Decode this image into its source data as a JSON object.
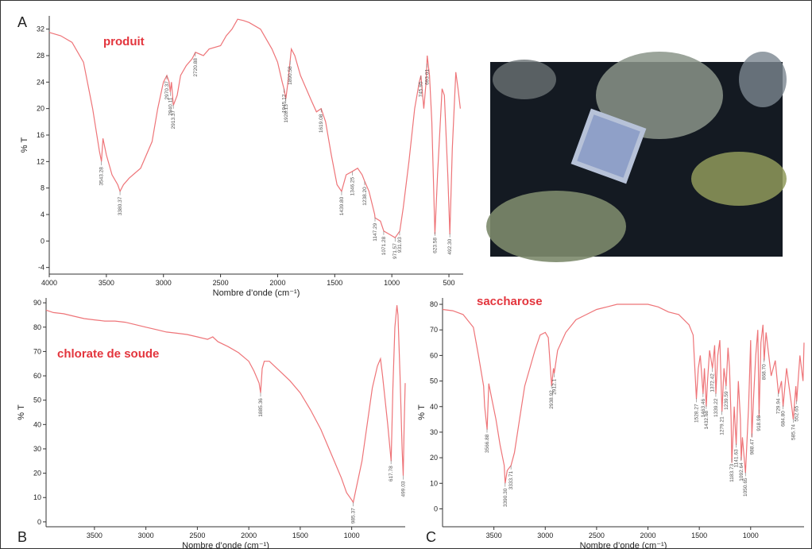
{
  "chart_data": [
    {
      "type": "line",
      "label": "A",
      "title": "produit",
      "x_label": "Nombre d’onde (cm⁻¹)",
      "y_label": "% T",
      "xlim": [
        4000,
        375
      ],
      "ylim": [
        -5,
        34
      ],
      "xticks": [
        4000,
        3500,
        3000,
        2500,
        2000,
        1500,
        1000,
        500
      ],
      "yticks": [
        -4,
        0,
        4,
        8,
        12,
        16,
        20,
        24,
        28,
        32
      ],
      "x": [
        4000,
        3900,
        3800,
        3700,
        3620,
        3560,
        3543,
        3530,
        3500,
        3450,
        3400,
        3380,
        3350,
        3300,
        3200,
        3100,
        3050,
        3000,
        2970,
        2950,
        2940,
        2930,
        2913,
        2880,
        2850,
        2800,
        2750,
        2720,
        2650,
        2600,
        2500,
        2450,
        2400,
        2350,
        2300,
        2250,
        2150,
        2050,
        2000,
        1960,
        1945,
        1928,
        1910,
        1880,
        1850,
        1800,
        1700,
        1660,
        1619,
        1580,
        1530,
        1480,
        1440,
        1400,
        1346,
        1300,
        1260,
        1238,
        1200,
        1150,
        1147,
        1100,
        1071,
        1020,
        971,
        930,
        900,
        850,
        800,
        760,
        745,
        720,
        700,
        690,
        670,
        650,
        623,
        600,
        560,
        540,
        510,
        492,
        470,
        440,
        420,
        400
      ],
      "series": [
        {
          "color": "#ee7478",
          "values": [
            31.5,
            31,
            30,
            27,
            20,
            13.5,
            12,
            15.5,
            13,
            10,
            8.5,
            7.5,
            8.5,
            9.5,
            11,
            15,
            20,
            24,
            25,
            24,
            22.5,
            24,
            20.5,
            22,
            25,
            26.5,
            27.5,
            28.5,
            28,
            29,
            29.5,
            31,
            32,
            33.5,
            33.3,
            33,
            32,
            29,
            27,
            24,
            23,
            21.5,
            24,
            29,
            28,
            25,
            21,
            19.5,
            20,
            18,
            13,
            8.5,
            7.5,
            10,
            10.5,
            11,
            10,
            9,
            7.5,
            4,
            3.5,
            3,
            1.5,
            1,
            0.5,
            1.5,
            5,
            12,
            20,
            24,
            25,
            20,
            24,
            28,
            25,
            18,
            1,
            10,
            23,
            22,
            10,
            1,
            14,
            25.5,
            23,
            20
          ]
        }
      ],
      "annotations": [
        {
          "value": 3543.28,
          "label": "3543.28"
        },
        {
          "value": 3380.37,
          "label": "3380.37"
        },
        {
          "value": 2970.37,
          "label": "2970.37"
        },
        {
          "value": 2940.11,
          "label": "2940.11"
        },
        {
          "value": 2913.37,
          "label": "2913.37"
        },
        {
          "value": 2720.88,
          "label": "2720.88"
        },
        {
          "value": 1945.12,
          "label": "1945.12"
        },
        {
          "value": 1928.13,
          "label": "1928.13"
        },
        {
          "value": 1890.58,
          "label": "1890.58"
        },
        {
          "value": 1619.08,
          "label": "1619.08"
        },
        {
          "value": 1439.8,
          "label": "1439.80"
        },
        {
          "value": 1346.25,
          "label": "1346.25"
        },
        {
          "value": 1238.2,
          "label": "1238.20"
        },
        {
          "value": 1147.29,
          "label": "1147.29"
        },
        {
          "value": 1071.28,
          "label": "1071.28"
        },
        {
          "value": 971.57,
          "label": "971.57"
        },
        {
          "value": 931.93,
          "label": "931.93"
        },
        {
          "value": 745.95,
          "label": "745.95"
        },
        {
          "value": 693.01,
          "label": "693.01"
        },
        {
          "value": 623.58,
          "label": "623.58"
        },
        {
          "value": 492.3,
          "label": "492.30"
        }
      ]
    },
    {
      "type": "line",
      "label": "B",
      "title": "chlorate de soude",
      "x_label": "Nombre d’onde (cm⁻¹)",
      "y_label": "% T",
      "xlim": [
        3970,
        480
      ],
      "ylim": [
        -2,
        92
      ],
      "xticks": [
        3500,
        3000,
        2500,
        2000,
        1500,
        1000
      ],
      "yticks": [
        0,
        10,
        20,
        30,
        40,
        50,
        60,
        70,
        80,
        90
      ],
      "x": [
        3970,
        3900,
        3800,
        3700,
        3600,
        3500,
        3400,
        3300,
        3200,
        3100,
        3000,
        2900,
        2800,
        2700,
        2600,
        2500,
        2400,
        2350,
        2300,
        2200,
        2100,
        2000,
        1950,
        1900,
        1885,
        1870,
        1850,
        1800,
        1700,
        1600,
        1500,
        1400,
        1300,
        1200,
        1100,
        1050,
        1000,
        985,
        960,
        900,
        850,
        800,
        750,
        720,
        700,
        650,
        617,
        600,
        580,
        560,
        550,
        530,
        510,
        499,
        490,
        480
      ],
      "series": [
        {
          "color": "#ee7478",
          "values": [
            87,
            86,
            85.5,
            84.5,
            83.5,
            83,
            82.5,
            82.5,
            82,
            81,
            80,
            79,
            78,
            77.5,
            77,
            76,
            75,
            76,
            74,
            72,
            69.5,
            66,
            62,
            57,
            53,
            63,
            66,
            66,
            62,
            58,
            53,
            46,
            38,
            28,
            18,
            12,
            9,
            8,
            13,
            25,
            40,
            55,
            64,
            67,
            60,
            40,
            25,
            55,
            80,
            89,
            85,
            60,
            30,
            19,
            40,
            57
          ]
        }
      ],
      "annotations": [
        {
          "value": 1885.36,
          "label": "1885.36"
        },
        {
          "value": 985.37,
          "label": "985.37"
        },
        {
          "value": 617.78,
          "label": "617.78"
        },
        {
          "value": 499.03,
          "label": "499.03"
        }
      ]
    },
    {
      "type": "line",
      "label": "C",
      "title": "saccharose",
      "x_label": "Nombre d’onde (cm⁻¹)",
      "y_label": "% T",
      "xlim": [
        4000,
        480
      ],
      "ylim": [
        -7,
        82.5
      ],
      "xticks": [
        3500,
        3000,
        2500,
        2000,
        1500,
        1000
      ],
      "yticks": [
        0,
        10,
        20,
        30,
        40,
        50,
        60,
        70,
        80
      ],
      "x": [
        4000,
        3900,
        3800,
        3700,
        3650,
        3600,
        3590,
        3566,
        3550,
        3520,
        3480,
        3440,
        3400,
        3390,
        3370,
        3333,
        3300,
        3250,
        3200,
        3100,
        3050,
        3000,
        2970,
        2938,
        2920,
        2912,
        2880,
        2800,
        2700,
        2600,
        2500,
        2400,
        2300,
        2000,
        1900,
        1800,
        1700,
        1600,
        1560,
        1528,
        1510,
        1490,
        1463,
        1450,
        1432,
        1420,
        1400,
        1372,
        1350,
        1339,
        1320,
        1300,
        1279,
        1260,
        1239,
        1220,
        1206,
        1190,
        1183,
        1160,
        1141,
        1120,
        1100,
        1092,
        1080,
        1050,
        1020,
        1000,
        988,
        970,
        950,
        930,
        918,
        900,
        880,
        868,
        850,
        800,
        760,
        729,
        700,
        684,
        650,
        600,
        585,
        560,
        552,
        520,
        490,
        480
      ],
      "series": [
        {
          "color": "#ee7478",
          "values": [
            78,
            77.5,
            76,
            71,
            60,
            48,
            40,
            31,
            49,
            43,
            35,
            25,
            17,
            10,
            15,
            17,
            22,
            35,
            48,
            62,
            68,
            69,
            67,
            48,
            55,
            53,
            62,
            69,
            74,
            76,
            78,
            79,
            80,
            80,
            79,
            77,
            76,
            72,
            68,
            43,
            55,
            60,
            45,
            55,
            40,
            50,
            62,
            55,
            64,
            45,
            60,
            66,
            38,
            55,
            48,
            63,
            55,
            35,
            18,
            40,
            25,
            50,
            35,
            19,
            28,
            14,
            40,
            66,
            28,
            45,
            60,
            70,
            36,
            65,
            72,
            58,
            69,
            52,
            58,
            45,
            50,
            40,
            55,
            40,
            35,
            48,
            42,
            60,
            50,
            65
          ]
        }
      ],
      "annotations": [
        {
          "value": 3566.88,
          "label": "3566.88"
        },
        {
          "value": 3390.3,
          "label": "3390.30"
        },
        {
          "value": 3333.71,
          "label": "3333.71"
        },
        {
          "value": 2938.92,
          "label": "2938.92"
        },
        {
          "value": 2912.1,
          "label": "2912.1"
        },
        {
          "value": 1528.27,
          "label": "1528.27"
        },
        {
          "value": 1463.46,
          "label": "1463.46"
        },
        {
          "value": 1432.68,
          "label": "1432.68"
        },
        {
          "value": 1372.42,
          "label": "1372.42"
        },
        {
          "value": 1339.22,
          "label": "1339.22"
        },
        {
          "value": 1279.21,
          "label": "1279.21"
        },
        {
          "value": 1239.59,
          "label": "1239.59"
        },
        {
          "value": 1183.73,
          "label": "1183.73"
        },
        {
          "value": 1141.63,
          "label": "1141.63"
        },
        {
          "value": 1092.64,
          "label": "1092.64"
        },
        {
          "value": 1050.65,
          "label": "1050.65"
        },
        {
          "value": 988.47,
          "label": "988.47"
        },
        {
          "value": 918.98,
          "label": "918.98"
        },
        {
          "value": 868.7,
          "label": "868.70"
        },
        {
          "value": 729.94,
          "label": "729.94"
        },
        {
          "value": 684.8,
          "label": "684.80"
        },
        {
          "value": 585.74,
          "label": "585.74"
        },
        {
          "value": 552.65,
          "label": "552.65"
        }
      ]
    }
  ]
}
